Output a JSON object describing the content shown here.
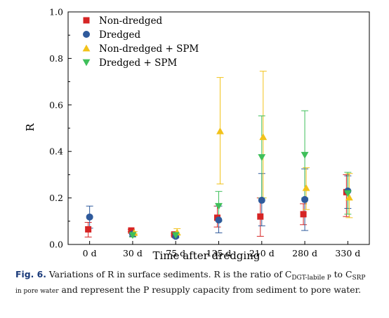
{
  "chart_data": {
    "type": "scatter",
    "title": "",
    "xlabel": "Time after dredging",
    "ylabel": "R",
    "categories": [
      "0 d",
      "30 d",
      "75 d",
      "135 d",
      "210 d",
      "280 d",
      "330 d"
    ],
    "ylim": [
      0,
      1.0
    ],
    "yticks": [
      "0.0",
      "0.2",
      "0.4",
      "0.6",
      "0.8",
      "1.0"
    ],
    "grid": false,
    "legend_position": "top-left",
    "series": [
      {
        "name": "Non-dredged",
        "marker": "square",
        "color": "#d62424",
        "values": [
          0.065,
          0.06,
          0.043,
          0.115,
          0.12,
          0.13,
          0.225
        ],
        "err_low": [
          0.032,
          0.055,
          0.04,
          0.075,
          0.035,
          0.085,
          0.12
        ],
        "err_high": [
          0.095,
          0.065,
          0.048,
          0.165,
          0.2,
          0.175,
          0.3
        ]
      },
      {
        "name": "Dredged",
        "marker": "circle",
        "color": "#2f5a9c",
        "values": [
          0.118,
          0.045,
          0.035,
          0.105,
          0.19,
          0.193,
          0.23
        ],
        "err_low": [
          0.07,
          0.035,
          0.028,
          0.05,
          0.08,
          0.06,
          0.155
        ],
        "err_high": [
          0.165,
          0.055,
          0.043,
          0.165,
          0.305,
          0.325,
          0.295
        ]
      },
      {
        "name": "Non-dredged + SPM",
        "marker": "triangle-up",
        "color": "#f2c21a",
        "values": [
          null,
          0.05,
          0.052,
          0.487,
          0.462,
          0.243,
          0.202
        ],
        "err_low": [
          null,
          0.045,
          0.04,
          0.26,
          0.2,
          0.15,
          0.115
        ],
        "err_high": [
          null,
          0.055,
          0.068,
          0.718,
          0.745,
          0.33,
          0.305
        ]
      },
      {
        "name": "Dredged + SPM",
        "marker": "triangle-down",
        "color": "#3fbf5a",
        "values": [
          null,
          0.04,
          0.04,
          0.165,
          0.375,
          0.385,
          0.22
        ],
        "err_low": [
          null,
          0.032,
          0.032,
          0.1,
          0.2,
          0.2,
          0.13
        ],
        "err_high": [
          null,
          0.048,
          0.048,
          0.228,
          0.553,
          0.575,
          0.31
        ]
      }
    ]
  },
  "caption": {
    "label": "Fig. 6.",
    "line1_a": " Variations of R in surface sediments. R is the ratio of C",
    "line1_sub1": "DGT-labile P",
    "line1_b": " to C",
    "line1_sub2": "SRP",
    "line2_sub": "in pore water",
    "line2_text": " and represent the P resupply capacity from sediment to pore water."
  }
}
